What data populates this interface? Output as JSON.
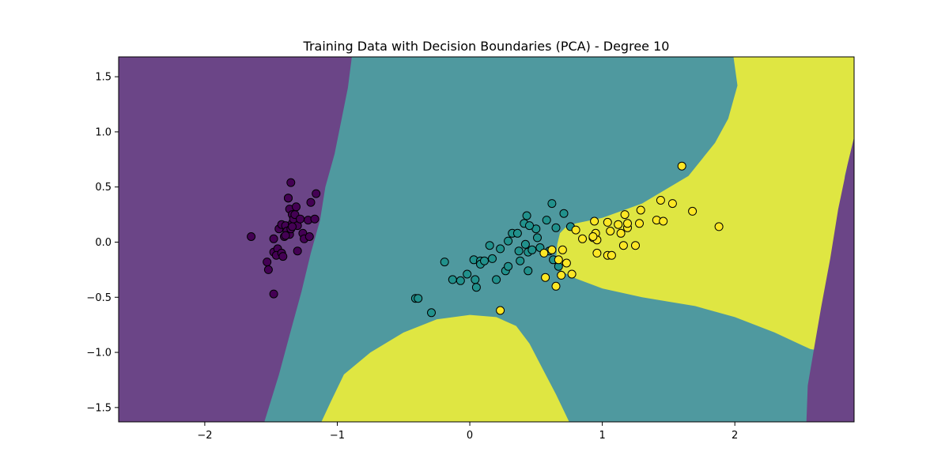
{
  "chart_data": {
    "type": "scatter",
    "title": "Training Data with Decision Boundaries (PCA) - Degree 10",
    "xlabel": "",
    "ylabel": "",
    "xlim": [
      -2.65,
      2.9
    ],
    "ylim": [
      -1.63,
      1.68
    ],
    "xticks": [
      -2,
      -1,
      0,
      1,
      2
    ],
    "xtick_labels": [
      "−2",
      "−1",
      "0",
      "1",
      "2"
    ],
    "yticks": [
      -1.5,
      -1.0,
      -0.5,
      0.0,
      0.5,
      1.0,
      1.5
    ],
    "ytick_labels": [
      "−1.5",
      "−1.0",
      "−0.5",
      "0.0",
      "0.5",
      "1.0",
      "1.5"
    ],
    "grid": false,
    "legend": "none",
    "colors": {
      "class_0": "#440154",
      "class_1": "#21918c",
      "class_2": "#fde725",
      "region_0": "#6b4587",
      "region_1": "#4f999f",
      "region_2": "#dfe642",
      "marker_edge": "#000000"
    },
    "regions": [
      {
        "class": 0,
        "polygon": [
          [
            -2.65,
            1.68
          ],
          [
            -0.89,
            1.68
          ],
          [
            -0.92,
            1.4
          ],
          [
            -0.97,
            1.1
          ],
          [
            -1.02,
            0.8
          ],
          [
            -1.09,
            0.5
          ],
          [
            -1.13,
            0.2
          ],
          [
            -1.2,
            -0.1
          ],
          [
            -1.27,
            -0.45
          ],
          [
            -1.35,
            -0.8
          ],
          [
            -1.44,
            -1.2
          ],
          [
            -1.55,
            -1.63
          ],
          [
            -2.65,
            -1.63
          ]
        ]
      },
      {
        "class": 2,
        "polygon": [
          [
            1.99,
            1.68
          ],
          [
            2.9,
            1.68
          ],
          [
            2.9,
            0.95
          ],
          [
            2.83,
            0.6
          ],
          [
            2.8,
            0.2
          ],
          [
            2.77,
            -0.2
          ],
          [
            2.75,
            -0.6
          ],
          [
            2.72,
            -1.0
          ],
          [
            2.57,
            -0.97
          ],
          [
            2.3,
            -0.82
          ],
          [
            2.0,
            -0.68
          ],
          [
            1.7,
            -0.58
          ],
          [
            1.3,
            -0.5
          ],
          [
            1.0,
            -0.42
          ],
          [
            0.8,
            -0.33
          ],
          [
            0.7,
            -0.27
          ],
          [
            0.65,
            -0.18
          ],
          [
            0.66,
            -0.02
          ],
          [
            0.68,
            0.08
          ],
          [
            0.72,
            0.13
          ],
          [
            0.8,
            0.17
          ],
          [
            1.0,
            0.22
          ],
          [
            1.3,
            0.35
          ],
          [
            1.65,
            0.6
          ],
          [
            1.85,
            0.9
          ],
          [
            1.95,
            1.12
          ],
          [
            2.02,
            1.42
          ]
        ]
      },
      {
        "class": 2,
        "polygon": [
          [
            -1.12,
            -1.63
          ],
          [
            -1.05,
            -1.45
          ],
          [
            -0.95,
            -1.2
          ],
          [
            -0.75,
            -1.0
          ],
          [
            -0.5,
            -0.82
          ],
          [
            -0.25,
            -0.7
          ],
          [
            0.0,
            -0.66
          ],
          [
            0.2,
            -0.68
          ],
          [
            0.35,
            -0.76
          ],
          [
            0.45,
            -0.92
          ],
          [
            0.55,
            -1.15
          ],
          [
            0.65,
            -1.38
          ],
          [
            0.75,
            -1.63
          ]
        ]
      },
      {
        "class": 0,
        "polygon": [
          [
            2.9,
            0.95
          ],
          [
            2.9,
            -1.63
          ],
          [
            2.54,
            -1.63
          ],
          [
            2.55,
            -1.3
          ],
          [
            2.6,
            -0.95
          ],
          [
            2.65,
            -0.6
          ],
          [
            2.72,
            -0.15
          ],
          [
            2.78,
            0.3
          ],
          [
            2.85,
            0.7
          ]
        ]
      }
    ],
    "series": [
      {
        "class": 0,
        "points": [
          [
            -1.65,
            0.05
          ],
          [
            -1.53,
            -0.18
          ],
          [
            -1.52,
            -0.25
          ],
          [
            -1.48,
            -0.47
          ],
          [
            -1.48,
            0.03
          ],
          [
            -1.48,
            -0.09
          ],
          [
            -1.45,
            -0.06
          ],
          [
            -1.46,
            -0.12
          ],
          [
            -1.44,
            0.12
          ],
          [
            -1.42,
            0.16
          ],
          [
            -1.42,
            -0.1
          ],
          [
            -1.41,
            -0.13
          ],
          [
            -1.4,
            0.05
          ],
          [
            -1.39,
            0.15
          ],
          [
            -1.38,
            0.1
          ],
          [
            -1.37,
            0.4
          ],
          [
            -1.36,
            0.3
          ],
          [
            -1.36,
            0.07
          ],
          [
            -1.35,
            0.54
          ],
          [
            -1.35,
            0.12
          ],
          [
            -1.34,
            0.25
          ],
          [
            -1.34,
            0.17
          ],
          [
            -1.33,
            0.21
          ],
          [
            -1.32,
            0.25
          ],
          [
            -1.31,
            0.32
          ],
          [
            -1.3,
            0.15
          ],
          [
            -1.3,
            -0.08
          ],
          [
            -1.28,
            0.21
          ],
          [
            -1.26,
            0.08
          ],
          [
            -1.25,
            0.03
          ],
          [
            -1.22,
            0.2
          ],
          [
            -1.21,
            0.05
          ],
          [
            -1.2,
            0.36
          ],
          [
            -1.17,
            0.21
          ],
          [
            -1.16,
            0.44
          ],
          [
            -1.37,
            0.4
          ],
          [
            -1.39,
            0.06
          ],
          [
            -1.34,
            0.14
          ]
        ]
      },
      {
        "class": 1,
        "points": [
          [
            -0.41,
            -0.51
          ],
          [
            -0.39,
            -0.51
          ],
          [
            -0.29,
            -0.64
          ],
          [
            -0.19,
            -0.18
          ],
          [
            -0.13,
            -0.34
          ],
          [
            -0.07,
            -0.35
          ],
          [
            -0.02,
            -0.29
          ],
          [
            0.03,
            -0.16
          ],
          [
            0.04,
            -0.34
          ],
          [
            0.05,
            -0.41
          ],
          [
            0.08,
            -0.17
          ],
          [
            0.08,
            -0.2
          ],
          [
            0.11,
            -0.17
          ],
          [
            0.15,
            -0.03
          ],
          [
            0.17,
            -0.15
          ],
          [
            0.2,
            -0.34
          ],
          [
            0.23,
            -0.06
          ],
          [
            0.27,
            -0.26
          ],
          [
            0.29,
            0.01
          ],
          [
            0.29,
            -0.22
          ],
          [
            0.32,
            0.08
          ],
          [
            0.36,
            0.08
          ],
          [
            0.37,
            -0.08
          ],
          [
            0.38,
            -0.17
          ],
          [
            0.41,
            0.17
          ],
          [
            0.42,
            -0.02
          ],
          [
            0.43,
            0.24
          ],
          [
            0.44,
            -0.09
          ],
          [
            0.44,
            -0.26
          ],
          [
            0.47,
            -0.07
          ],
          [
            0.5,
            0.12
          ],
          [
            0.51,
            0.04
          ],
          [
            0.53,
            -0.05
          ],
          [
            0.58,
            0.2
          ],
          [
            0.62,
            0.35
          ],
          [
            0.63,
            -0.16
          ],
          [
            0.65,
            0.13
          ],
          [
            0.67,
            -0.22
          ],
          [
            0.71,
            0.26
          ],
          [
            0.76,
            0.14
          ],
          [
            0.45,
            0.15
          ],
          [
            0.6,
            -0.08
          ]
        ]
      },
      {
        "class": 2,
        "points": [
          [
            0.23,
            -0.62
          ],
          [
            0.56,
            -0.1
          ],
          [
            0.57,
            -0.32
          ],
          [
            0.62,
            -0.07
          ],
          [
            0.65,
            -0.4
          ],
          [
            0.67,
            -0.16
          ],
          [
            0.69,
            -0.3
          ],
          [
            0.7,
            -0.07
          ],
          [
            0.73,
            -0.19
          ],
          [
            0.77,
            -0.29
          ],
          [
            0.8,
            0.11
          ],
          [
            0.85,
            0.03
          ],
          [
            0.93,
            0.04
          ],
          [
            0.94,
            0.19
          ],
          [
            0.95,
            0.08
          ],
          [
            0.96,
            0.02
          ],
          [
            0.96,
            -0.1
          ],
          [
            1.04,
            0.18
          ],
          [
            1.04,
            -0.12
          ],
          [
            1.06,
            0.1
          ],
          [
            1.07,
            -0.12
          ],
          [
            1.12,
            0.16
          ],
          [
            1.14,
            0.08
          ],
          [
            1.16,
            -0.03
          ],
          [
            1.17,
            0.25
          ],
          [
            1.19,
            0.13
          ],
          [
            1.19,
            0.17
          ],
          [
            1.25,
            -0.03
          ],
          [
            1.28,
            0.17
          ],
          [
            1.29,
            0.29
          ],
          [
            1.41,
            0.2
          ],
          [
            1.44,
            0.38
          ],
          [
            1.46,
            0.19
          ],
          [
            1.53,
            0.35
          ],
          [
            1.6,
            0.69
          ],
          [
            1.68,
            0.28
          ],
          [
            1.88,
            0.14
          ],
          [
            0.93,
            0.05
          ]
        ]
      }
    ]
  }
}
